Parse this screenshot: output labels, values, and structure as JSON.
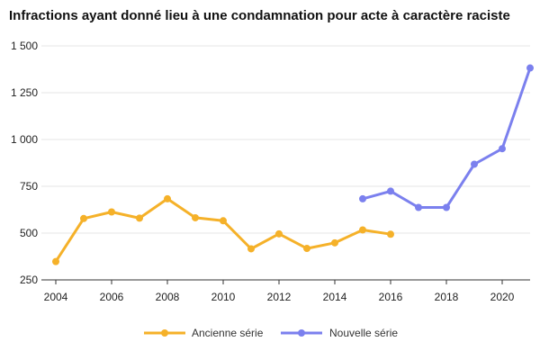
{
  "chart_data": {
    "type": "line",
    "title": "Infractions ayant donné lieu à une condamnation pour acte à caractère raciste",
    "xlabel": "",
    "ylabel": "",
    "xlim": [
      2004,
      2021
    ],
    "ylim": [
      250,
      1500
    ],
    "x_ticks": [
      2004,
      2006,
      2008,
      2010,
      2012,
      2014,
      2016,
      2018,
      2020
    ],
    "x_tick_labels": [
      "2004",
      "2006",
      "2008",
      "2010",
      "2012",
      "2014",
      "2016",
      "2018",
      "2020"
    ],
    "y_ticks": [
      250,
      500,
      750,
      1000,
      1250,
      1500
    ],
    "y_tick_labels": [
      "250",
      "500",
      "750",
      "1 000",
      "1 250",
      "1 500"
    ],
    "grid": "horizontal",
    "legend_position": "bottom-center",
    "series": [
      {
        "name": "Ancienne série",
        "color": "#F5B129",
        "x": [
          2004,
          2005,
          2006,
          2007,
          2008,
          2009,
          2010,
          2011,
          2012,
          2013,
          2014,
          2015,
          2016
        ],
        "values": [
          348,
          578,
          613,
          580,
          683,
          582,
          566,
          416,
          496,
          418,
          448,
          517,
          494
        ]
      },
      {
        "name": "Nouvelle série",
        "color": "#7B80EE",
        "x": [
          2015,
          2016,
          2017,
          2018,
          2019,
          2020,
          2021
        ],
        "values": [
          683,
          724,
          637,
          637,
          868,
          951,
          1382
        ]
      }
    ]
  }
}
